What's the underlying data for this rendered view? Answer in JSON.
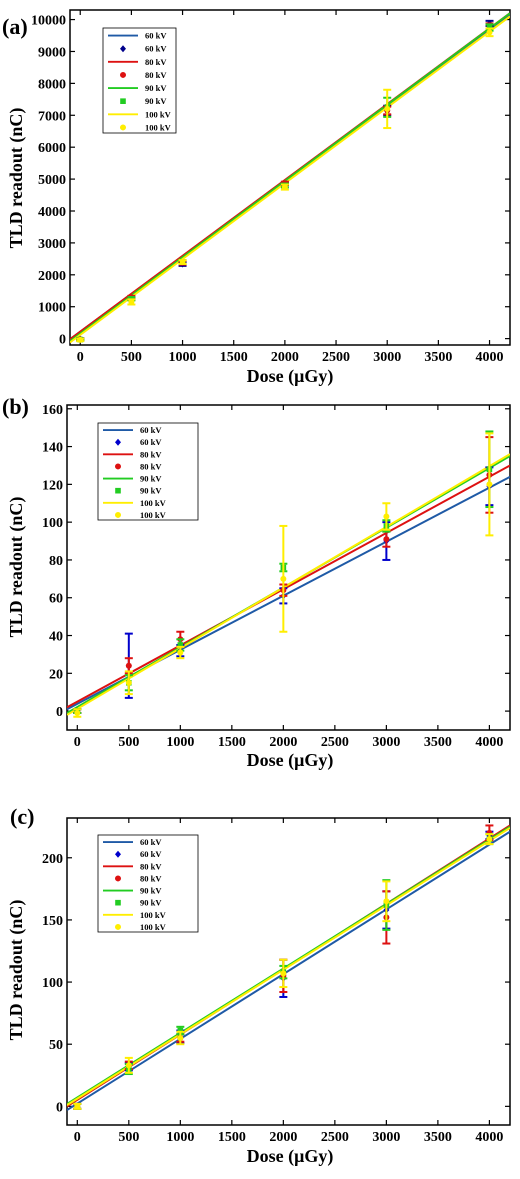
{
  "chart_data": [
    {
      "type": "line",
      "panel_label": "(a)",
      "xlabel": "Dose (μGy)",
      "ylabel": "TLD readout (nC)",
      "xlim": [
        -100,
        4200
      ],
      "ylim": [
        -200,
        10300
      ],
      "xticks": [
        0,
        500,
        1000,
        1500,
        2000,
        2500,
        3000,
        3500,
        4000
      ],
      "yticks": [
        0,
        1000,
        2000,
        3000,
        4000,
        5000,
        6000,
        7000,
        8000,
        9000,
        10000
      ],
      "legend_position": "top-left",
      "grid": false,
      "x": [
        0,
        500,
        1000,
        2000,
        3000,
        4000
      ],
      "series": [
        {
          "name": "60 kV",
          "color": "#1f5aa6",
          "marker_color": "#00008b",
          "marker": "diamond",
          "values": [
            -20,
            1250,
            2340,
            4850,
            7150,
            9880
          ],
          "errors": [
            30,
            40,
            60,
            40,
            150,
            80
          ],
          "fit": [
            [
              -100,
              -20
            ],
            [
              4200,
              10150
            ]
          ]
        },
        {
          "name": "80 kV",
          "color": "#dd1111",
          "marker_color": "#dd1111",
          "marker": "circle",
          "values": [
            -20,
            1300,
            2380,
            4870,
            7150,
            9800
          ],
          "errors": [
            30,
            40,
            60,
            50,
            120,
            80
          ],
          "fit": [
            [
              -100,
              -20
            ],
            [
              4200,
              10200
            ]
          ]
        },
        {
          "name": "90 kV",
          "color": "#22cc22",
          "marker_color": "#22cc22",
          "marker": "square",
          "values": [
            -30,
            1250,
            2400,
            4800,
            7250,
            9750
          ],
          "errors": [
            30,
            50,
            60,
            60,
            300,
            100
          ],
          "fit": [
            [
              -100,
              -80
            ],
            [
              4200,
              10200
            ]
          ]
        },
        {
          "name": "100 kV",
          "color": "#ffee00",
          "marker_color": "#ffee00",
          "marker": "circle",
          "values": [
            -40,
            1150,
            2400,
            4750,
            7200,
            9600
          ],
          "errors": [
            40,
            80,
            60,
            80,
            600,
            120
          ],
          "fit": [
            [
              -100,
              -120
            ],
            [
              4200,
              10100
            ]
          ]
        }
      ]
    },
    {
      "type": "line",
      "panel_label": "(b)",
      "xlabel": "Dose (μGy)",
      "ylabel": "TLD readout (nC)",
      "xlim": [
        -100,
        4200
      ],
      "ylim": [
        -10,
        162
      ],
      "xticks": [
        0,
        500,
        1000,
        1500,
        2000,
        2500,
        3000,
        3500,
        4000
      ],
      "yticks": [
        0,
        20,
        40,
        60,
        80,
        100,
        120,
        140,
        160
      ],
      "legend_position": "top-left",
      "grid": false,
      "x": [
        0,
        500,
        1000,
        2000,
        3000,
        4000
      ],
      "series": [
        {
          "name": "60 kV",
          "color": "#1f5aa6",
          "marker_color": "#0000cc",
          "marker": "diamond",
          "values": [
            0,
            24,
            32,
            61,
            90,
            119
          ],
          "errors": [
            1,
            17,
            3,
            4,
            10,
            10
          ],
          "fit": [
            [
              -100,
              1
            ],
            [
              4200,
              124
            ]
          ]
        },
        {
          "name": "80 kV",
          "color": "#dd1111",
          "marker_color": "#dd1111",
          "marker": "circle",
          "values": [
            0,
            24,
            38,
            64,
            91,
            125
          ],
          "errors": [
            1,
            4,
            4,
            3,
            4,
            20
          ],
          "fit": [
            [
              -100,
              2
            ],
            [
              4200,
              130
            ]
          ]
        },
        {
          "name": "90 kV",
          "color": "#22cc22",
          "marker_color": "#22cc22",
          "marker": "square",
          "values": [
            0,
            15,
            35,
            76,
            98,
            128
          ],
          "errors": [
            1,
            4,
            3,
            2,
            3,
            20
          ],
          "fit": [
            [
              -100,
              -1
            ],
            [
              4200,
              135
            ]
          ]
        },
        {
          "name": "100 kV",
          "color": "#ffee00",
          "marker_color": "#ffee00",
          "marker": "circle",
          "values": [
            -1,
            15,
            31,
            70,
            103,
            120
          ],
          "errors": [
            2,
            6,
            3,
            28,
            7,
            27
          ],
          "fit": [
            [
              -100,
              -2
            ],
            [
              4200,
              136
            ]
          ]
        }
      ]
    },
    {
      "type": "line",
      "panel_label": "(c)",
      "xlabel": "Dose (μGy)",
      "ylabel": "TLD readout (nC)",
      "xlim": [
        -100,
        4200
      ],
      "ylim": [
        -15,
        232
      ],
      "xticks": [
        0,
        500,
        1000,
        1500,
        2000,
        2500,
        3000,
        3500,
        4000
      ],
      "yticks": [
        0,
        50,
        100,
        150,
        200
      ],
      "legend_position": "top-left",
      "grid": false,
      "x": [
        0,
        500,
        1000,
        2000,
        3000,
        4000
      ],
      "series": [
        {
          "name": "60 kV",
          "color": "#1f5aa6",
          "marker_color": "#0000cc",
          "marker": "diamond",
          "values": [
            0,
            32,
            56,
            103,
            158,
            218
          ],
          "errors": [
            2,
            3,
            5,
            15,
            15,
            3
          ],
          "fit": [
            [
              -100,
              -3
            ],
            [
              4200,
              221
            ]
          ]
        },
        {
          "name": "80 kV",
          "color": "#dd1111",
          "marker_color": "#dd1111",
          "marker": "circle",
          "values": [
            0,
            33,
            55,
            105,
            152,
            220
          ],
          "errors": [
            2,
            3,
            3,
            13,
            21,
            6
          ],
          "fit": [
            [
              -100,
              0
            ],
            [
              4200,
              226
            ]
          ]
        },
        {
          "name": "90 kV",
          "color": "#22cc22",
          "marker_color": "#22cc22",
          "marker": "square",
          "values": [
            0,
            30,
            61,
            108,
            162,
            215
          ],
          "errors": [
            2,
            4,
            3,
            5,
            20,
            4
          ],
          "fit": [
            [
              -100,
              2
            ],
            [
              4200,
              225
            ]
          ]
        },
        {
          "name": "100 kV",
          "color": "#ffee00",
          "marker_color": "#ffee00",
          "marker": "circle",
          "values": [
            0,
            33,
            55,
            107,
            165,
            215
          ],
          "errors": [
            2,
            6,
            5,
            11,
            16,
            4
          ],
          "fit": [
            [
              -100,
              1
            ],
            [
              4200,
              224
            ]
          ]
        }
      ]
    }
  ]
}
